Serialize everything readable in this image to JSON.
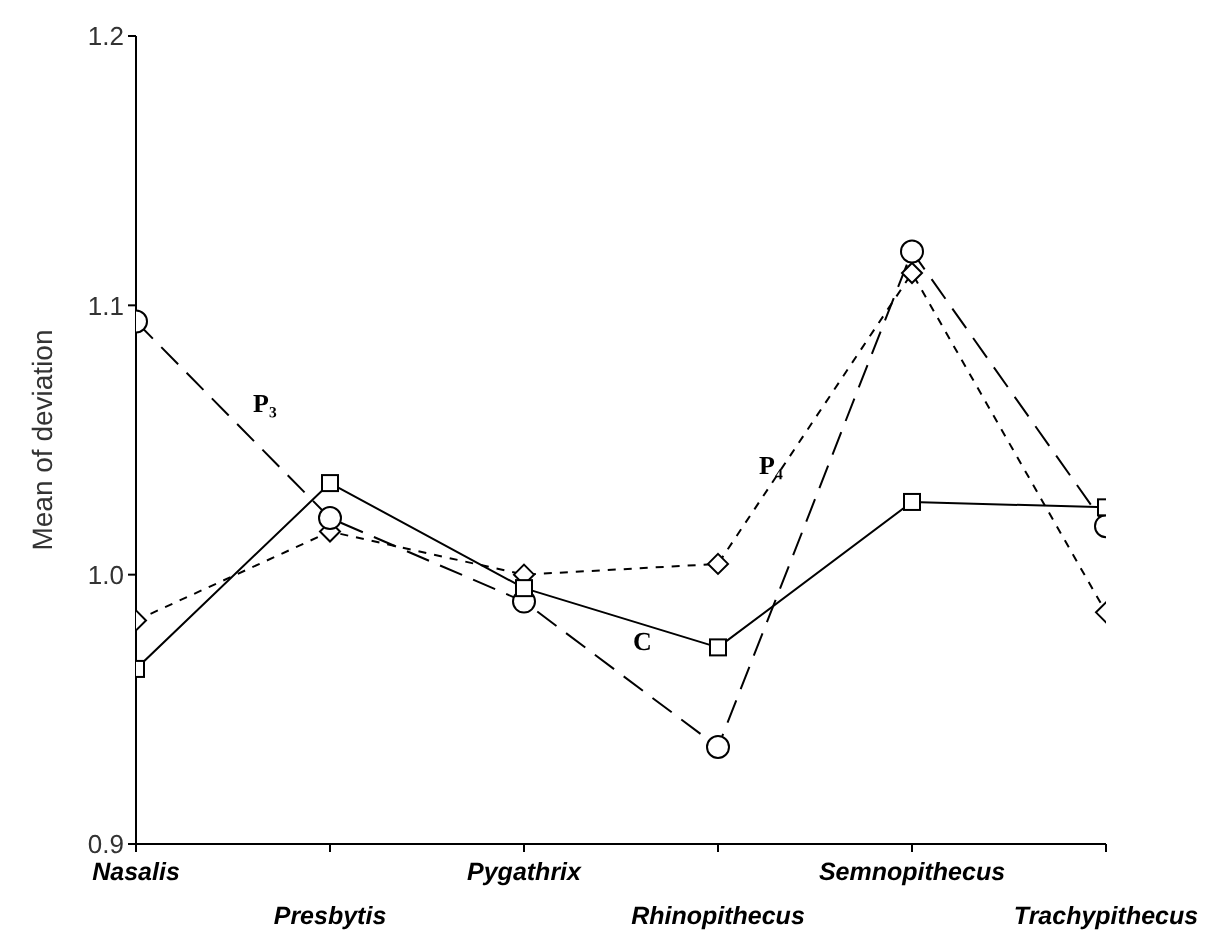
{
  "chart_data": {
    "type": "line",
    "ylabel": "Mean of deviation",
    "categories": [
      "Nasalis",
      "Presbytis",
      "Pygathrix",
      "Rhinopithecus",
      "Semnopithecus",
      "Trachypithecus"
    ],
    "ylim": [
      0.9,
      1.2
    ],
    "yticks": [
      0.9,
      {
        "value": 1,
        "label": "1.0"
      },
      1.1,
      1.2
    ],
    "grid": false,
    "legend": false,
    "series": [
      {
        "name": "C",
        "color": "#000000",
        "marker": "square",
        "line_style": "solid",
        "values": [
          0.965,
          1.034,
          0.995,
          0.973,
          1.027,
          1.025
        ]
      },
      {
        "name": "P₃",
        "color": "#000000",
        "marker": "circle",
        "line_style": "dashed",
        "values": [
          1.094,
          1.021,
          0.99,
          0.936,
          1.12,
          1.018
        ]
      },
      {
        "name": "P₄",
        "color": "#000000",
        "marker": "diamond",
        "line_style": "dotted",
        "values": [
          0.983,
          1.016,
          1.0,
          1.004,
          1.112,
          0.986
        ]
      }
    ]
  }
}
